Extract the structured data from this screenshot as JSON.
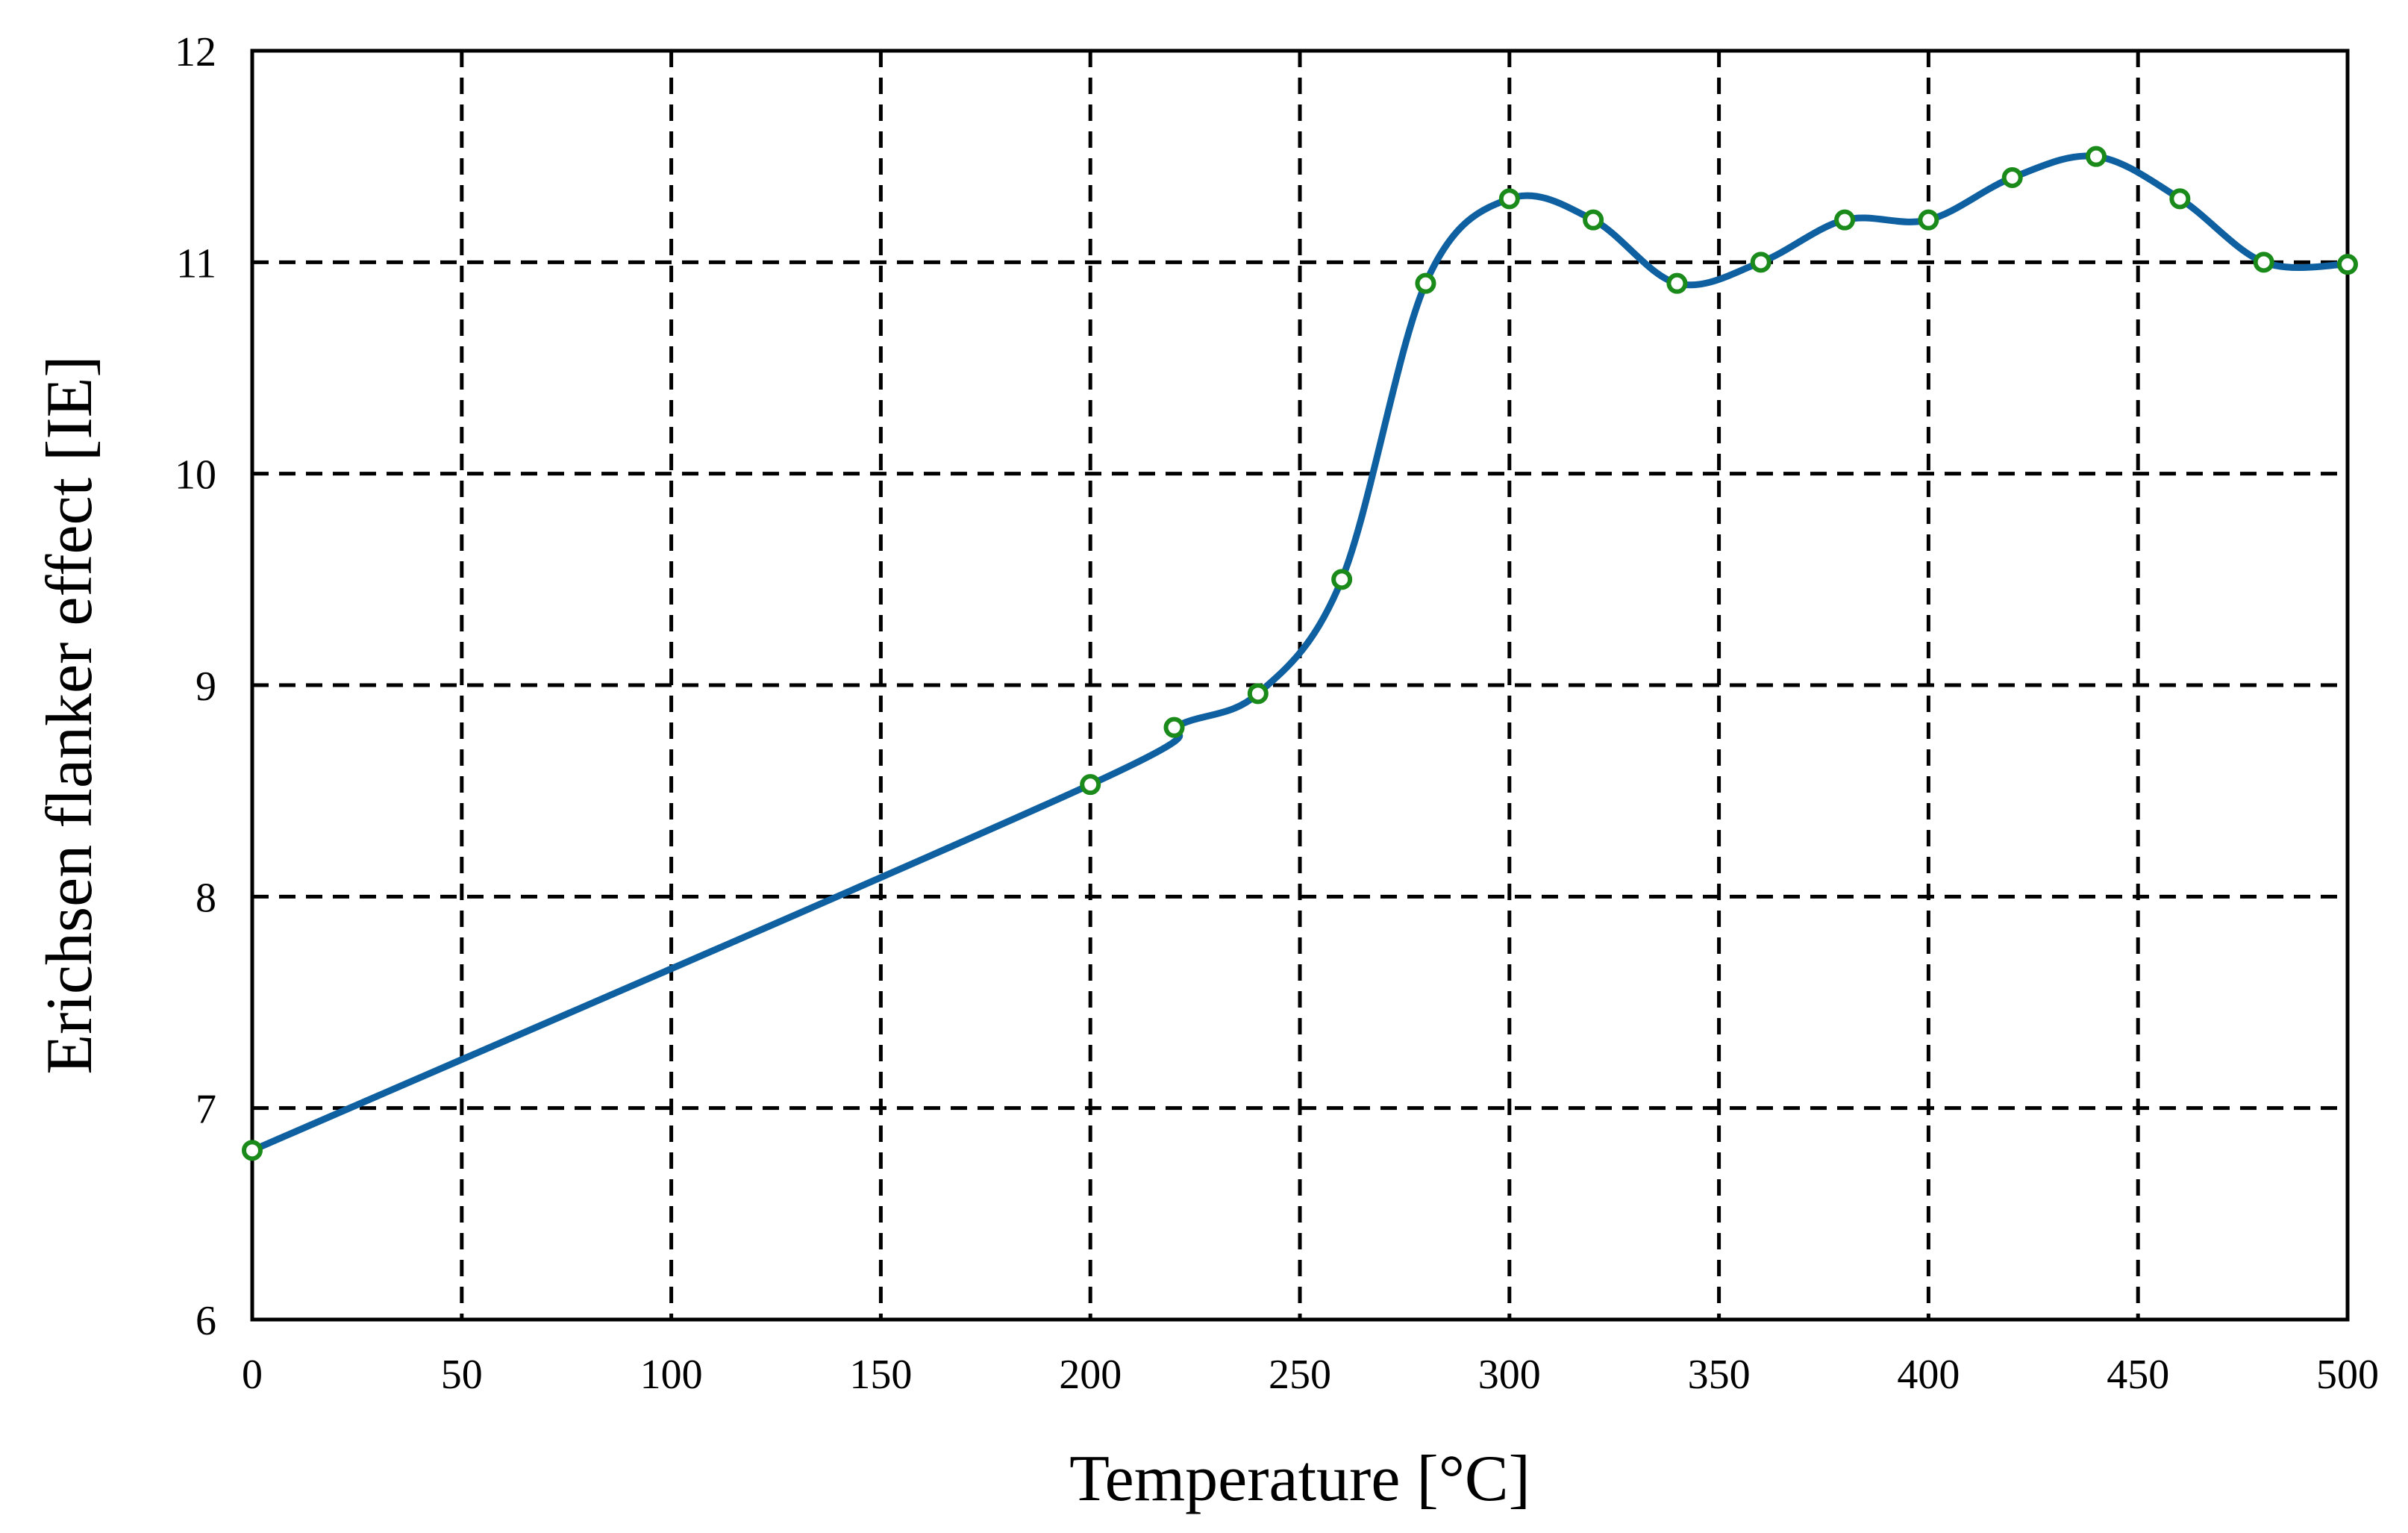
{
  "chart_data": {
    "type": "line",
    "title": "",
    "xlabel": "Temperature [°C]",
    "ylabel": "Erichsen flanker effect [IE]",
    "xlim": [
      0,
      500
    ],
    "ylim": [
      6,
      12
    ],
    "xticks": [
      0,
      50,
      100,
      150,
      200,
      250,
      300,
      350,
      400,
      450,
      500
    ],
    "yticks": [
      6,
      7,
      8,
      9,
      10,
      11,
      12
    ],
    "xtick_labels": [
      "0",
      "50",
      "100",
      "150",
      "200",
      "250",
      "300",
      "350",
      "400",
      "450",
      "500"
    ],
    "ytick_labels": [
      "6",
      "7",
      "8",
      "9",
      "10",
      "11",
      "12"
    ],
    "grid": true,
    "legend": "none",
    "series": [
      {
        "x": [
          0,
          200,
          220,
          240,
          260,
          280,
          300,
          320,
          340,
          360,
          380,
          400,
          420,
          440,
          460,
          480,
          500
        ],
        "y": [
          6.8,
          8.53,
          8.8,
          8.96,
          9.5,
          10.9,
          11.3,
          11.2,
          10.9,
          11.0,
          11.2,
          11.2,
          11.4,
          11.5,
          11.3,
          11.0,
          10.99
        ],
        "line_color": "#0f60a0",
        "marker": "open-circle",
        "marker_color": "#1a8a1a",
        "smoothed": true
      }
    ]
  }
}
